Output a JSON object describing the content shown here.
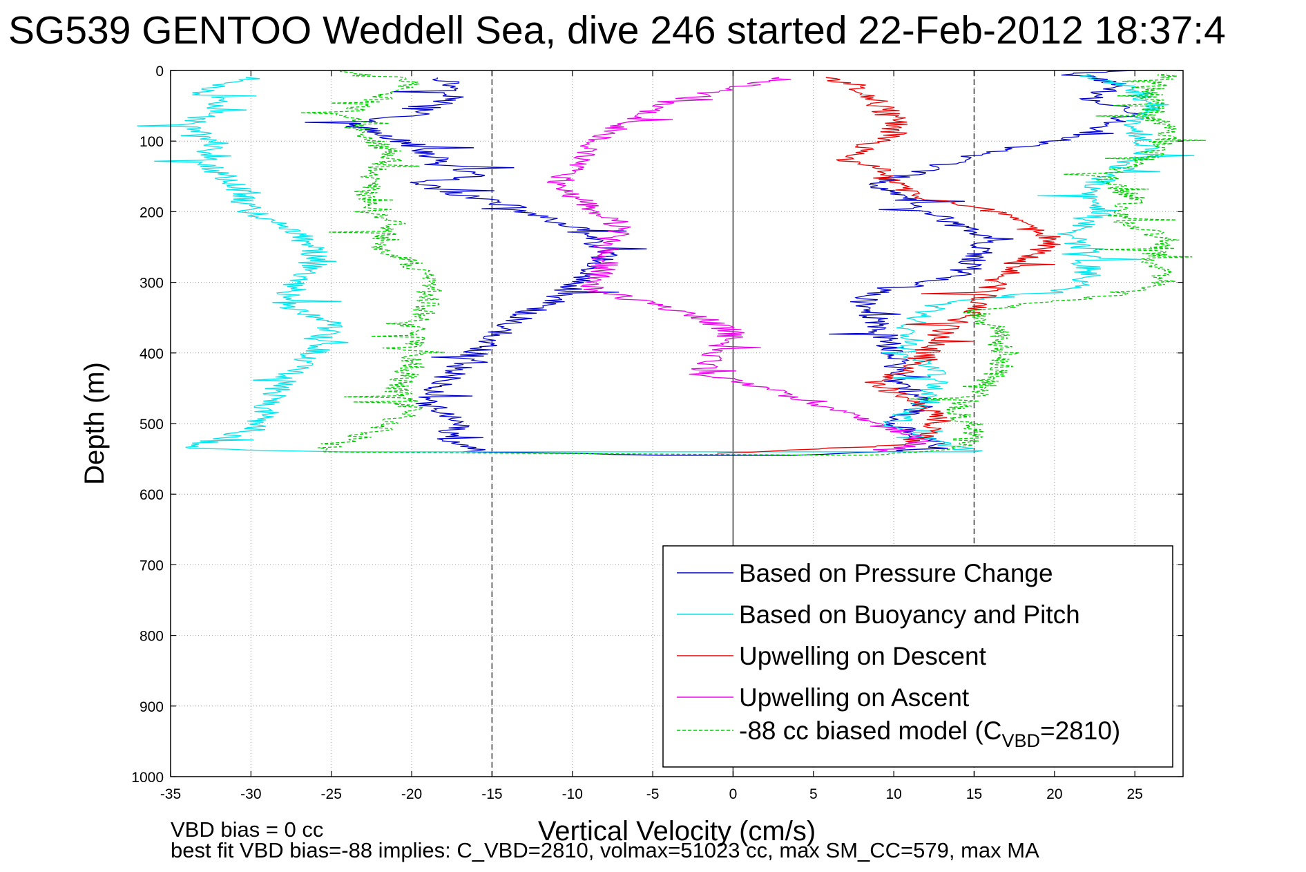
{
  "chart_data": {
    "type": "line",
    "title": "SG539 GENTOO Weddell Sea, dive 246 started 22-Feb-2012 18:37:4",
    "xlabel": "Vertical Velocity (cm/s)",
    "ylabel": "Depth (m)",
    "xlim": [
      -35,
      28
    ],
    "ylim": [
      1000,
      0
    ],
    "y_reversed": true,
    "grid": true,
    "x_ticks": [
      "-35",
      "-30",
      "-25",
      "-20",
      "-15",
      "-10",
      "-5",
      "0",
      "5",
      "10",
      "15",
      "20",
      "25"
    ],
    "y_ticks": [
      "0",
      "100",
      "200",
      "300",
      "400",
      "500",
      "600",
      "700",
      "800",
      "900",
      "1000"
    ],
    "reference_lines": [
      {
        "x": -15,
        "style": "dashed"
      },
      {
        "x": 0,
        "style": "solid"
      },
      {
        "x": 15,
        "style": "dashed"
      }
    ],
    "legend_position": "bottom-right",
    "series": [
      {
        "name": "Based on Pressure Change",
        "color": "#0000cc",
        "style": "solid",
        "points": [
          [
            -18,
            10
          ],
          [
            -17,
            30
          ],
          [
            -19,
            60
          ],
          [
            -24,
            75
          ],
          [
            -22,
            90
          ],
          [
            -20,
            105
          ],
          [
            -18,
            130
          ],
          [
            -16,
            150
          ],
          [
            -20,
            160
          ],
          [
            -15,
            185
          ],
          [
            -10,
            220
          ],
          [
            -8,
            260
          ],
          [
            -9,
            290
          ],
          [
            -11,
            320
          ],
          [
            -14,
            360
          ],
          [
            -16,
            400
          ],
          [
            -18,
            440
          ],
          [
            -19,
            470
          ],
          [
            -17,
            500
          ],
          [
            -18,
            520
          ],
          [
            -16,
            540
          ],
          [
            -4,
            545
          ],
          [
            4,
            545
          ],
          [
            13,
            535
          ],
          [
            10,
            500
          ],
          [
            12,
            470
          ],
          [
            10,
            440
          ],
          [
            10,
            400
          ],
          [
            9,
            360
          ],
          [
            8,
            320
          ],
          [
            14,
            290
          ],
          [
            16,
            240
          ],
          [
            12,
            200
          ],
          [
            9,
            160
          ],
          [
            12,
            140
          ],
          [
            15,
            120
          ],
          [
            20,
            100
          ],
          [
            23,
            80
          ],
          [
            25,
            60
          ],
          [
            22,
            40
          ],
          [
            24,
            20
          ],
          [
            21,
            5
          ],
          [
            25,
            0
          ]
        ]
      },
      {
        "name": "Based on Buoyancy and Pitch",
        "color": "#00e5ee",
        "style": "solid",
        "points": [
          [
            -30,
            10
          ],
          [
            -33,
            30
          ],
          [
            -32,
            50
          ],
          [
            -34,
            80
          ],
          [
            -32,
            100
          ],
          [
            -33,
            130
          ],
          [
            -31,
            160
          ],
          [
            -30,
            200
          ],
          [
            -27,
            230
          ],
          [
            -26,
            260
          ],
          [
            -27,
            300
          ],
          [
            -28,
            330
          ],
          [
            -25,
            360
          ],
          [
            -26,
            400
          ],
          [
            -28,
            440
          ],
          [
            -29,
            480
          ],
          [
            -30,
            510
          ],
          [
            -34,
            535
          ],
          [
            -25,
            540
          ],
          [
            -20,
            540
          ],
          [
            15,
            540
          ],
          [
            12,
            520
          ],
          [
            10,
            500
          ],
          [
            12,
            470
          ],
          [
            13,
            440
          ],
          [
            11,
            400
          ],
          [
            11,
            360
          ],
          [
            13,
            330
          ],
          [
            21,
            310
          ],
          [
            22,
            290
          ],
          [
            22,
            260
          ],
          [
            21,
            230
          ],
          [
            23,
            200
          ],
          [
            22,
            170
          ],
          [
            24,
            140
          ],
          [
            26,
            110
          ],
          [
            25,
            80
          ],
          [
            26,
            50
          ],
          [
            25,
            25
          ],
          [
            22,
            5
          ]
        ]
      },
      {
        "name": "Upwelling on Descent",
        "color": "#ee0000",
        "style": "solid",
        "points": [
          [
            6,
            10
          ],
          [
            8,
            25
          ],
          [
            9,
            45
          ],
          [
            10,
            70
          ],
          [
            10,
            90
          ],
          [
            8,
            110
          ],
          [
            7,
            125
          ],
          [
            9,
            140
          ],
          [
            10,
            160
          ],
          [
            12,
            180
          ],
          [
            16,
            200
          ],
          [
            18,
            220
          ],
          [
            20,
            240
          ],
          [
            19,
            260
          ],
          [
            17,
            285
          ],
          [
            16,
            310
          ],
          [
            15,
            340
          ],
          [
            13,
            370
          ],
          [
            12,
            400
          ],
          [
            11,
            420
          ],
          [
            9,
            440
          ],
          [
            10,
            460
          ],
          [
            13,
            490
          ],
          [
            12,
            510
          ],
          [
            11,
            530
          ],
          [
            -1,
            542
          ]
        ]
      },
      {
        "name": "Upwelling on Ascent",
        "color": "#ee00ee",
        "style": "solid",
        "points": [
          [
            3,
            10
          ],
          [
            1,
            20
          ],
          [
            -2,
            35
          ],
          [
            -5,
            55
          ],
          [
            -7,
            80
          ],
          [
            -9,
            110
          ],
          [
            -10,
            140
          ],
          [
            -11,
            160
          ],
          [
            -9,
            190
          ],
          [
            -7,
            220
          ],
          [
            -8,
            250
          ],
          [
            -8,
            280
          ],
          [
            -9,
            310
          ],
          [
            -5,
            330
          ],
          [
            -2,
            350
          ],
          [
            0,
            370
          ],
          [
            -1,
            400
          ],
          [
            -2,
            430
          ],
          [
            2,
            450
          ],
          [
            5,
            470
          ],
          [
            8,
            490
          ],
          [
            10,
            510
          ],
          [
            12,
            525
          ],
          [
            9,
            540
          ]
        ]
      },
      {
        "name": "-88 cc biased model (C<sub>VBD</sub>=2810)",
        "color": "#00cc00",
        "style": "dashed",
        "points": [
          [
            -24,
            0
          ],
          [
            -20,
            15
          ],
          [
            -22,
            40
          ],
          [
            -24,
            60
          ],
          [
            -23,
            90
          ],
          [
            -21,
            120
          ],
          [
            -22,
            140
          ],
          [
            -23,
            170
          ],
          [
            -22,
            200
          ],
          [
            -21,
            220
          ],
          [
            -22,
            250
          ],
          [
            -20,
            270
          ],
          [
            -19,
            300
          ],
          [
            -19,
            330
          ],
          [
            -20,
            360
          ],
          [
            -20,
            390
          ],
          [
            -20,
            420
          ],
          [
            -21,
            450
          ],
          [
            -20,
            480
          ],
          [
            -22,
            510
          ],
          [
            -25,
            530
          ],
          [
            -26,
            540
          ],
          [
            8,
            545
          ],
          [
            14,
            535
          ],
          [
            15,
            510
          ],
          [
            14,
            480
          ],
          [
            16,
            440
          ],
          [
            17,
            400
          ],
          [
            16,
            360
          ],
          [
            15,
            340
          ],
          [
            23,
            320
          ],
          [
            27,
            300
          ],
          [
            26,
            270
          ],
          [
            27,
            240
          ],
          [
            24,
            210
          ],
          [
            25,
            180
          ],
          [
            23,
            150
          ],
          [
            26,
            120
          ],
          [
            27,
            90
          ],
          [
            26,
            60
          ],
          [
            26,
            30
          ],
          [
            27,
            5
          ]
        ]
      }
    ],
    "annotations": [
      "VBD bias = 0 cc",
      "best fit VBD bias=-88 implies: C_VBD=2810, volmax=51023 cc, max SM_CC=579, max MA"
    ]
  }
}
